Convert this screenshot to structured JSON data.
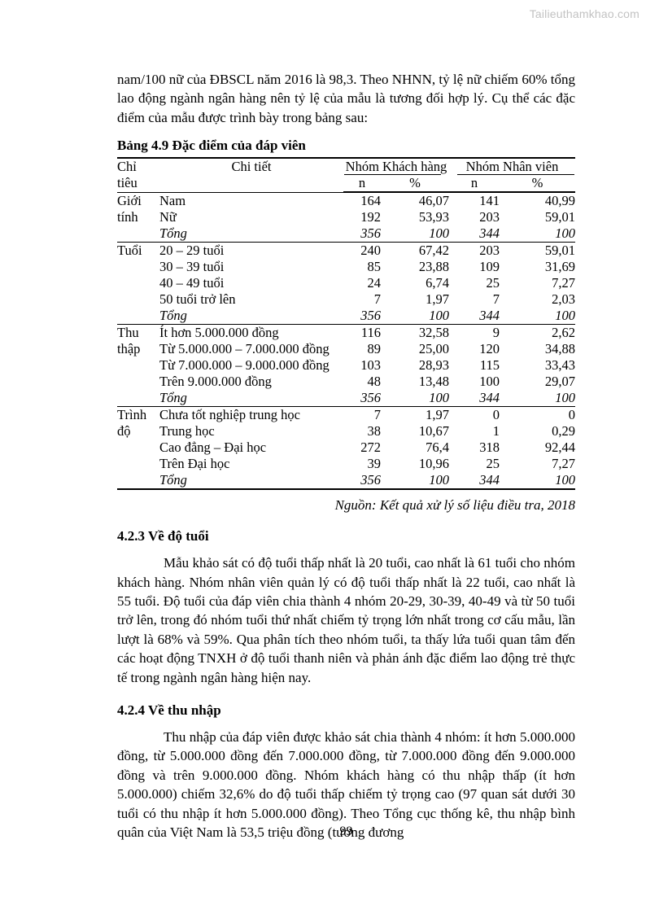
{
  "watermark": "Tailieuthamkhao.com",
  "page_number": "99",
  "intro_paragraph": "nam/100 nữ của ĐBSCL năm 2016 là 98,3. Theo NHNN, tỷ lệ nữ chiếm 60% tổng lao động ngành ngân hàng nên tỷ lệ của mẫu là tương đối hợp lý. Cụ thể các đặc điểm của mẫu được trình bày trong bảng sau:",
  "table": {
    "title": "Bảng 4.9 Đặc điểm của đáp viên",
    "header": {
      "col1": "Chỉ tiêu",
      "col2": "Chi tiết",
      "group1": "Nhóm Khách hàng",
      "group2": "Nhóm Nhân viên",
      "n1": "n",
      "p1": "%",
      "n2": "n",
      "p2": "%"
    },
    "groups": [
      {
        "label": "Giới tính",
        "rows": [
          [
            "Nam",
            "164",
            "46,07",
            "141",
            "40,99"
          ],
          [
            "Nữ",
            "192",
            "53,93",
            "203",
            "59,01"
          ]
        ],
        "total": [
          "Tổng",
          "356",
          "100",
          "344",
          "100"
        ]
      },
      {
        "label": "Tuổi",
        "rows": [
          [
            "20 – 29 tuổi",
            "240",
            "67,42",
            "203",
            "59,01"
          ],
          [
            "30 – 39 tuổi",
            "85",
            "23,88",
            "109",
            "31,69"
          ],
          [
            "40 – 49 tuổi",
            "24",
            "6,74",
            "25",
            "7,27"
          ],
          [
            "50 tuổi trở lên",
            "7",
            "1,97",
            "7",
            "2,03"
          ]
        ],
        "total": [
          "Tổng",
          "356",
          "100",
          "344",
          "100"
        ]
      },
      {
        "label": "Thu thập",
        "rows": [
          [
            "Ít hơn 5.000.000 đồng",
            "116",
            "32,58",
            "9",
            "2,62"
          ],
          [
            "Từ 5.000.000 – 7.000.000 đồng",
            "89",
            "25,00",
            "120",
            "34,88"
          ],
          [
            "Từ 7.000.000 – 9.000.000 đồng",
            "103",
            "28,93",
            "115",
            "33,43"
          ],
          [
            "Trên 9.000.000 đồng",
            "48",
            "13,48",
            "100",
            "29,07"
          ]
        ],
        "total": [
          "Tổng",
          "356",
          "100",
          "344",
          "100"
        ]
      },
      {
        "label": "Trình độ",
        "rows": [
          [
            "Chưa tốt nghiệp trung học",
            "7",
            "1,97",
            "0",
            "0"
          ],
          [
            "Trung học",
            "38",
            "10,67",
            "1",
            "0,29"
          ],
          [
            "Cao đẳng – Đại học",
            "272",
            "76,4",
            "318",
            "92,44"
          ],
          [
            "Trên Đại học",
            "39",
            "10,96",
            "25",
            "7,27"
          ]
        ],
        "total": [
          "Tổng",
          "356",
          "100",
          "344",
          "100"
        ]
      }
    ],
    "source": "Nguồn: Kết quả xử lý số liệu điều tra, 2018"
  },
  "sections": [
    {
      "heading": "4.2.3 Về độ tuổi",
      "body": "Mẫu khảo sát có độ tuổi thấp nhất là 20 tuổi, cao nhất là 61 tuổi cho nhóm khách hàng. Nhóm nhân viên quản lý có độ tuổi thấp nhất là 22 tuổi, cao nhất là 55 tuổi. Độ tuổi của đáp viên chia thành 4 nhóm 20-29, 30-39, 40-49 và từ 50 tuổi trở lên, trong đó nhóm tuổi thứ nhất chiếm tỷ trọng lớn nhất trong cơ cấu mẫu, lần lượt là 68% và 59%. Qua phân tích theo nhóm tuổi, ta thấy lứa tuổi quan tâm đến các hoạt động TNXH ở độ tuổi thanh niên và phản ánh đặc điểm lao động trẻ thực tế trong ngành ngân hàng hiện nay."
    },
    {
      "heading": "4.2.4 Về thu nhập",
      "body": "Thu nhập của đáp viên được khảo sát chia thành 4 nhóm: ít hơn 5.000.000 đồng, từ 5.000.000 đồng đến 7.000.000 đồng, từ 7.000.000 đồng đến 9.000.000 đồng và trên 9.000.000 đồng. Nhóm khách hàng có thu nhập thấp (ít hơn 5.000.000) chiếm 32,6% do độ tuổi thấp chiếm tỷ trọng cao (97 quan sát dưới 30 tuổi có thu nhập ít hơn 5.000.000 đồng). Theo Tổng cục thống kê, thu nhập bình quân của Việt Nam là 53,5 triệu đồng (tương đương"
    }
  ]
}
